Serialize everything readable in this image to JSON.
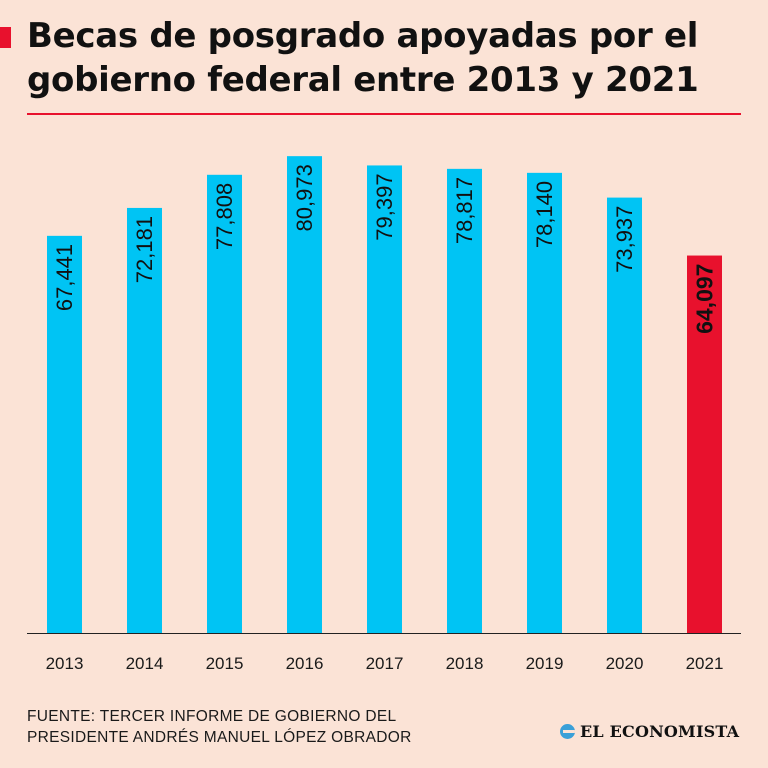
{
  "header": {
    "title_line1": "Becas de posgrado apoyadas por el",
    "title_line2": "gobierno federal entre 2013 y 2021"
  },
  "footer": {
    "source_line1": "FUENTE: TERCER INFORME DE GOBIERNO DEL",
    "source_line2": "PRESIDENTE ANDRÉS MANUEL LÓPEZ OBRADOR",
    "logo_text": "EL ECONOMISTA",
    "logo_icon": "el-economista-logo-icon"
  },
  "colors": {
    "background": "#fbe3d6",
    "bar": "#00c4f4",
    "highlight_bar": "#e8112d",
    "accent": "#e8112d"
  },
  "chart_data": {
    "type": "bar",
    "title": "Becas de posgrado apoyadas por el gobierno federal entre 2013 y 2021",
    "categories": [
      "2013",
      "2014",
      "2015",
      "2016",
      "2017",
      "2018",
      "2019",
      "2020",
      "2021"
    ],
    "values": [
      67441,
      72181,
      77808,
      80973,
      79397,
      78817,
      78140,
      73937,
      64097
    ],
    "value_labels": [
      "67,441",
      "72,181",
      "77,808",
      "80,973",
      "79,397",
      "78,817",
      "78,140",
      "73,937",
      "64,097"
    ],
    "highlight_index": 8,
    "xlabel": "",
    "ylabel": "",
    "ylim": [
      0,
      81000
    ],
    "grid": false,
    "legend": "none"
  }
}
